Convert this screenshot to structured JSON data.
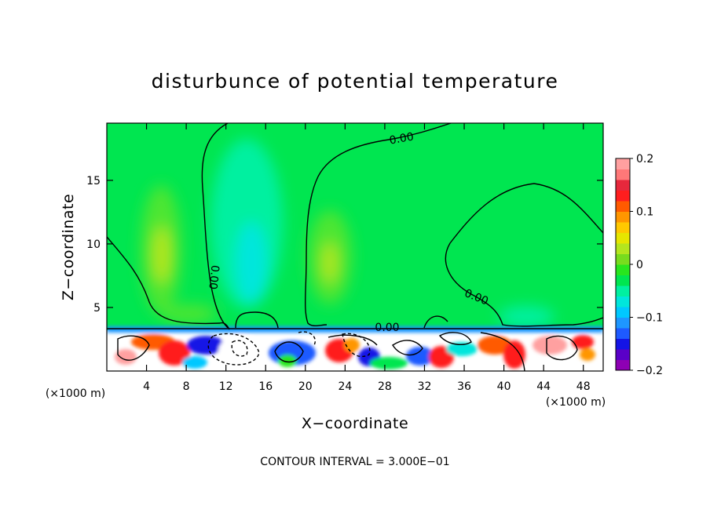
{
  "chart_data": {
    "type": "heatmap",
    "title": "disturbunce of potential temperature",
    "xlabel": "X−coordinate",
    "ylabel": "Z−coordinate",
    "x_unit": "(×1000 m)",
    "y_unit": "(×1000 m)",
    "xlim": [
      0,
      50
    ],
    "ylim": [
      0,
      19.5
    ],
    "x_ticks": [
      4,
      8,
      12,
      16,
      20,
      24,
      28,
      32,
      36,
      40,
      44,
      48
    ],
    "x_tick_labels": [
      "4",
      "8",
      "12",
      "16",
      "20",
      "24",
      "28",
      "32",
      "36",
      "40",
      "44",
      "48"
    ],
    "y_ticks": [
      5,
      10,
      15
    ],
    "y_tick_labels": [
      "5",
      "10",
      "15"
    ],
    "colorbar": {
      "range": [
        -0.2,
        0.2
      ],
      "ticks": [
        0.2,
        0.1,
        0,
        -0.1,
        -0.2
      ],
      "tick_labels": [
        "0.2",
        "0.1",
        "0",
        "−0.1",
        "−0.2"
      ],
      "colors": [
        "#8e00b4",
        "#5a00c8",
        "#1414e6",
        "#1e5aff",
        "#1e96ff",
        "#00c8ff",
        "#00e6dc",
        "#00f0a0",
        "#00e650",
        "#28e61e",
        "#78dc1e",
        "#b4e61e",
        "#e6e600",
        "#ffc800",
        "#ff9600",
        "#ff5a00",
        "#ff1e1e",
        "#e6283c",
        "#ff7878",
        "#ffa0a0"
      ]
    },
    "contour_labels": [
      "0.00",
      "0.00",
      "0.00",
      "0.00"
    ],
    "contour_interval_text": "CONTOUR INTERVAL = 3.000E−01"
  }
}
